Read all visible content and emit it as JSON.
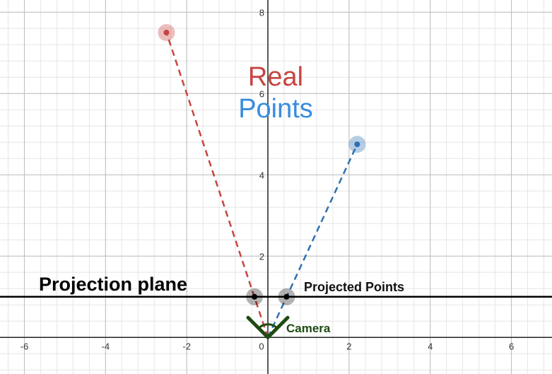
{
  "chart_data": {
    "type": "scatter",
    "xlim": [
      -6.6,
      7.0
    ],
    "ylim": [
      -0.9,
      8.3
    ],
    "grid": true,
    "x_ticks": [
      -6,
      -4,
      -2,
      0,
      2,
      4,
      6
    ],
    "y_ticks": [
      2,
      4,
      6,
      8
    ],
    "x_tick_labels": [
      "-6",
      "-4",
      "-2",
      "0",
      "2",
      "4",
      "6"
    ],
    "y_tick_labels": [
      "2",
      "4",
      "6",
      "8"
    ],
    "title_line1": "Real",
    "title_line2": "Points",
    "projection_plane_label": "Projection plane",
    "projected_points_label": "Projected Points",
    "camera_label": "Camera",
    "projection_plane_y": 1,
    "camera": {
      "x": 0,
      "y": 0
    },
    "real_points": [
      {
        "x": -2.5,
        "y": 7.5,
        "color": "#c74440"
      },
      {
        "x": 2.2,
        "y": 4.75,
        "color": "#2d70b3"
      }
    ],
    "projected_points": [
      {
        "x": -0.33,
        "y": 1
      },
      {
        "x": 0.46,
        "y": 1
      }
    ],
    "colors": {
      "real": "#c74440",
      "points": "#388cdf",
      "red_line": "#c74440",
      "blue_line": "#2d70b3",
      "projected": "#000000",
      "camera": "#1e4a12"
    }
  }
}
